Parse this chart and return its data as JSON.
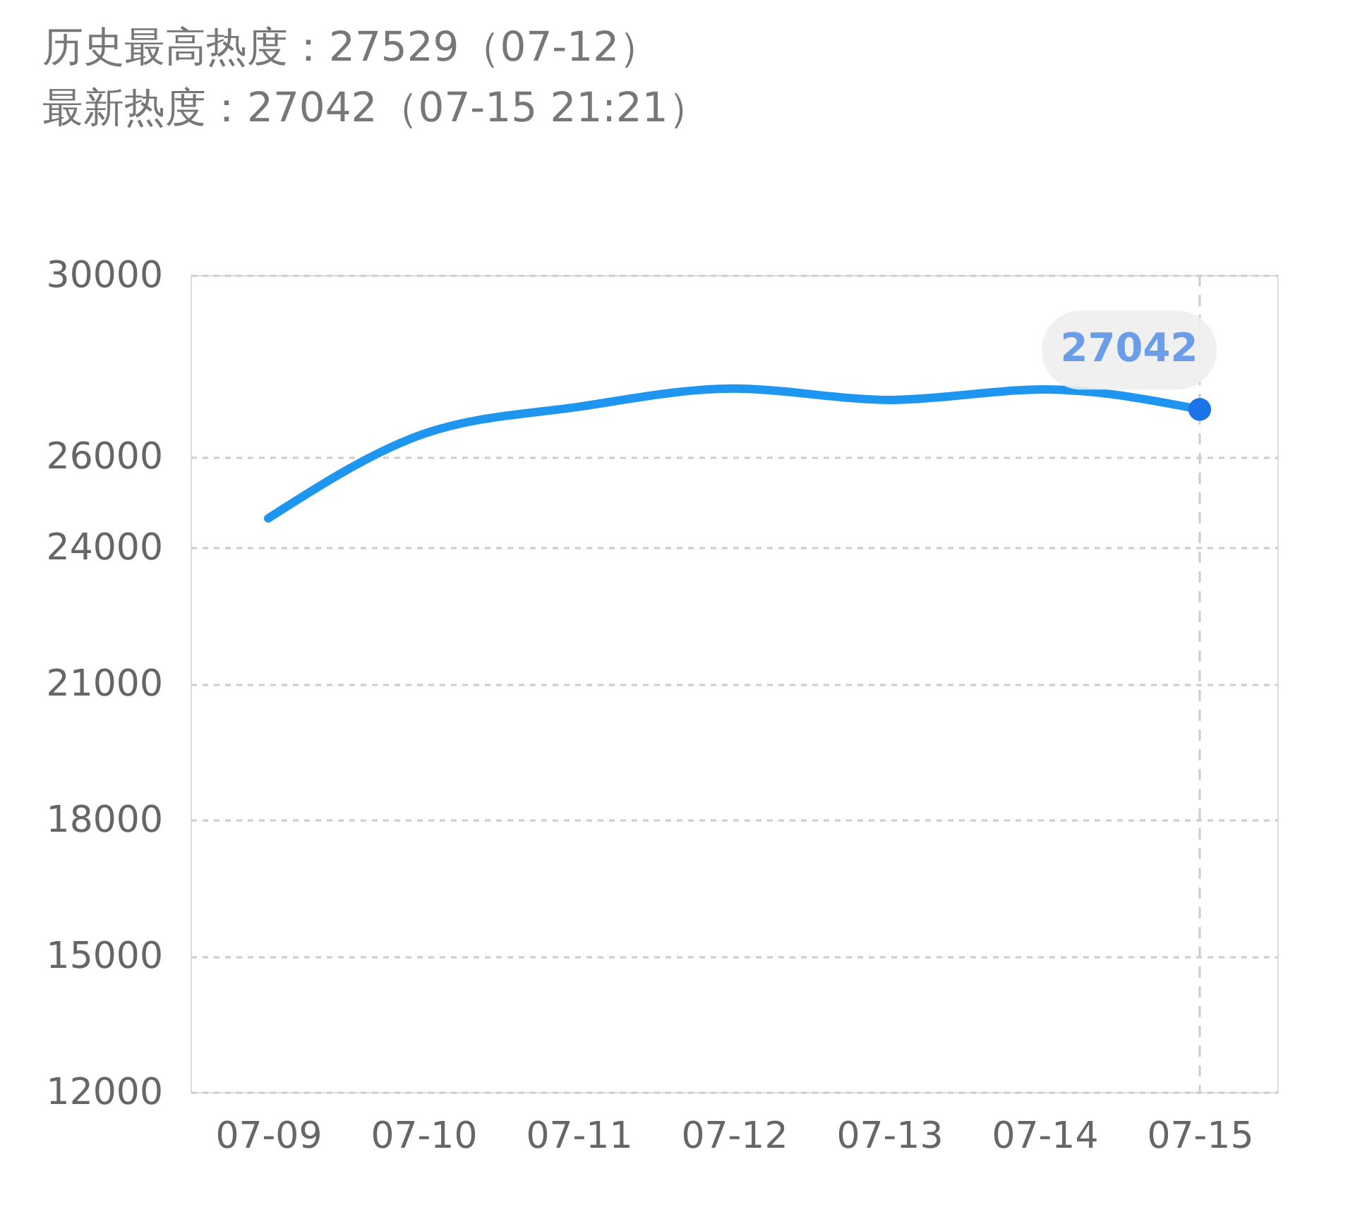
{
  "chart_data": {
    "type": "line",
    "title": "历史最高热度：27529（07-12）",
    "subtitle": "最新热度：27042（07-15 21:21）",
    "categories": [
      "07-09",
      "07-10",
      "07-11",
      "07-12",
      "07-13",
      "07-14",
      "07-15"
    ],
    "series": [
      {
        "color": "#1e96f0",
        "values": [
          24640,
          26500,
          27100,
          27500,
          27250,
          27480,
          27042
        ],
        "value_labels": [
          null,
          null,
          null,
          null,
          null,
          null,
          "27042"
        ]
      }
    ],
    "ylim": [
      12000,
      30000
    ],
    "yticks": [
      12000,
      15000,
      18000,
      21000,
      24000,
      26000,
      30000
    ],
    "grid": "y",
    "line_style": "solid",
    "ref_lines": [
      {
        "axis": "x",
        "value": "07-15",
        "color": "#cccccc",
        "line_style": "dashed"
      }
    ]
  }
}
